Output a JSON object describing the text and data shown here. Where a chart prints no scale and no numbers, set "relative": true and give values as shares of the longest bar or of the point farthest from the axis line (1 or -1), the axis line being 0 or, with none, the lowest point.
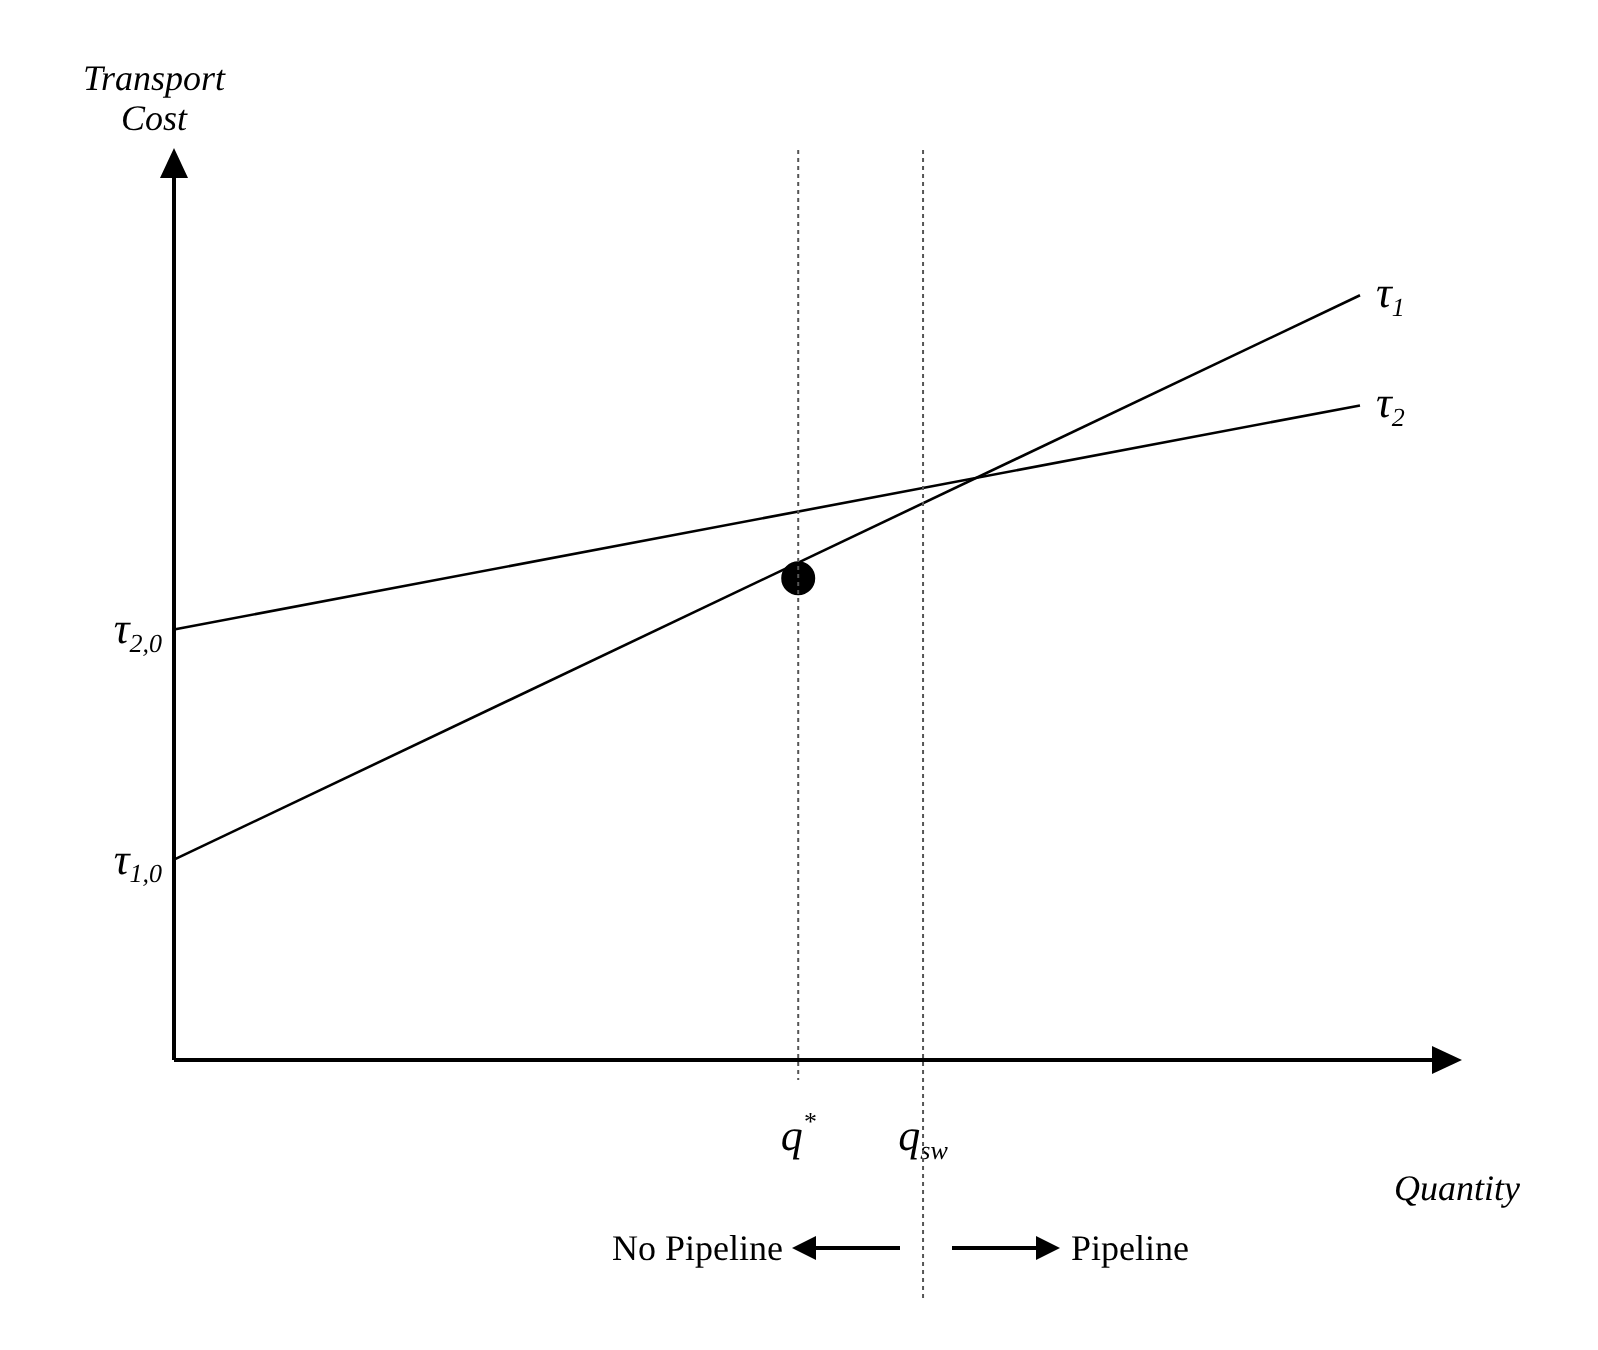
{
  "chart_data": {
    "type": "line",
    "relative": true,
    "xlabel": "Quantity",
    "ylabel": "Transport Cost",
    "tick_labels": "x",
    "legend": false,
    "categories": [
      null,
      null,
      null,
      null,
      null,
      null,
      null,
      null,
      null,
      null,
      "q$^{*}$",
      null,
      "q$_{sw}$",
      null,
      null,
      null,
      null,
      null,
      null,
      null
    ],
    "series": [
      {
        "name": "τ$_{1}$",
        "color": "#000000",
        "values": [
          0.262,
          null,
          null,
          null,
          null,
          null,
          null,
          null,
          null,
          null,
          null,
          null,
          null,
          null,
          null,
          null,
          null,
          null,
          null,
          1
        ]
      },
      {
        "name": "τ$_{2}$",
        "color": "#000000",
        "values": [
          0.563,
          null,
          null,
          null,
          null,
          null,
          null,
          null,
          null,
          null,
          null,
          null,
          null,
          null,
          null,
          null,
          null,
          null,
          null,
          0.856
        ]
      },
      {
        "type": "scatter",
        "color": "#000000",
        "marker": "circle",
        "x": [
          "q$^{*}$"
        ],
        "values": [
          0.63
        ]
      }
    ],
    "ref_lines": [
      {
        "axis": "x",
        "value": "q$^{*}$",
        "line_style": "dotted"
      },
      {
        "axis": "x",
        "value": "q$_{sw}$",
        "line_style": "dotted"
      }
    ],
    "annotations": [
      "τ$_{2,0}$",
      "τ$_{1,0}$",
      "No Pipeline",
      "Pipeline"
    ]
  }
}
